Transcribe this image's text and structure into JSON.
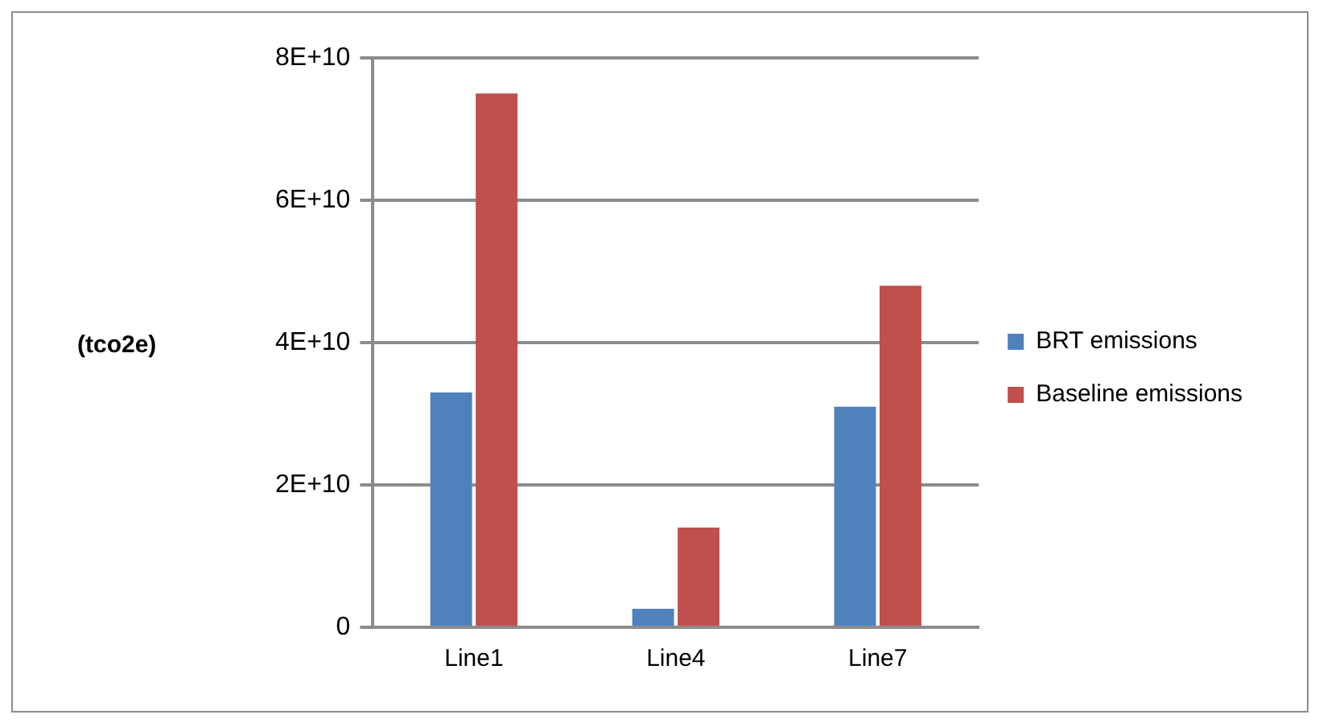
{
  "chart_data": {
    "type": "bar",
    "ylabel": "(tco2e)",
    "categories": [
      "Line1",
      "Line4",
      "Line7"
    ],
    "series": [
      {
        "name": "BRT emissions",
        "color": "#4f81bd",
        "values": [
          33000000000.0,
          2600000000.0,
          31000000000.0
        ]
      },
      {
        "name": "Baseline emissions",
        "color": "#c0504d",
        "values": [
          75000000000.0,
          14000000000.0,
          48000000000.0
        ]
      }
    ],
    "ylim": [
      0,
      80000000000.0
    ],
    "yticks": [
      0,
      {
        "value": 20000000000.0,
        "label": "2E+10"
      },
      {
        "value": 40000000000.0,
        "label": "4E+10"
      },
      {
        "value": 60000000000.0,
        "label": "6E+10"
      },
      {
        "value": 80000000000.0,
        "label": "8E+10"
      }
    ],
    "grid": "y",
    "legend": "right"
  }
}
